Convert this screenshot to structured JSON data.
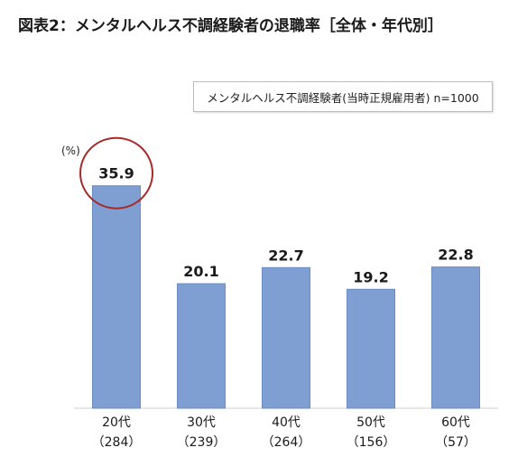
{
  "chart_data": {
    "type": "bar",
    "title": "図表2：メンタルヘルス不調経験者の退職率［全体・年代別］",
    "legend": "メンタルヘルス不調経験者(当時正規雇用者) n=1000",
    "ylabel": "(%)",
    "xlabel": "",
    "categories": [
      "20代",
      "30代",
      "40代",
      "50代",
      "60代"
    ],
    "sample_sizes": [
      "（284）",
      "（239）",
      "（264）",
      "（156）",
      "（57）"
    ],
    "values": [
      35.9,
      20.1,
      22.7,
      19.2,
      22.8
    ],
    "value_labels": [
      "35.9",
      "20.1",
      "22.7",
      "19.2",
      "22.8"
    ],
    "ylim": [
      0,
      40
    ],
    "highlight_index": 0,
    "grid": false,
    "colors": {
      "bar": "#7f9ed1",
      "bar_stroke": "#6b8cc4",
      "highlight_circle": "#a52a2a",
      "axis": "#cfcfcf"
    }
  }
}
